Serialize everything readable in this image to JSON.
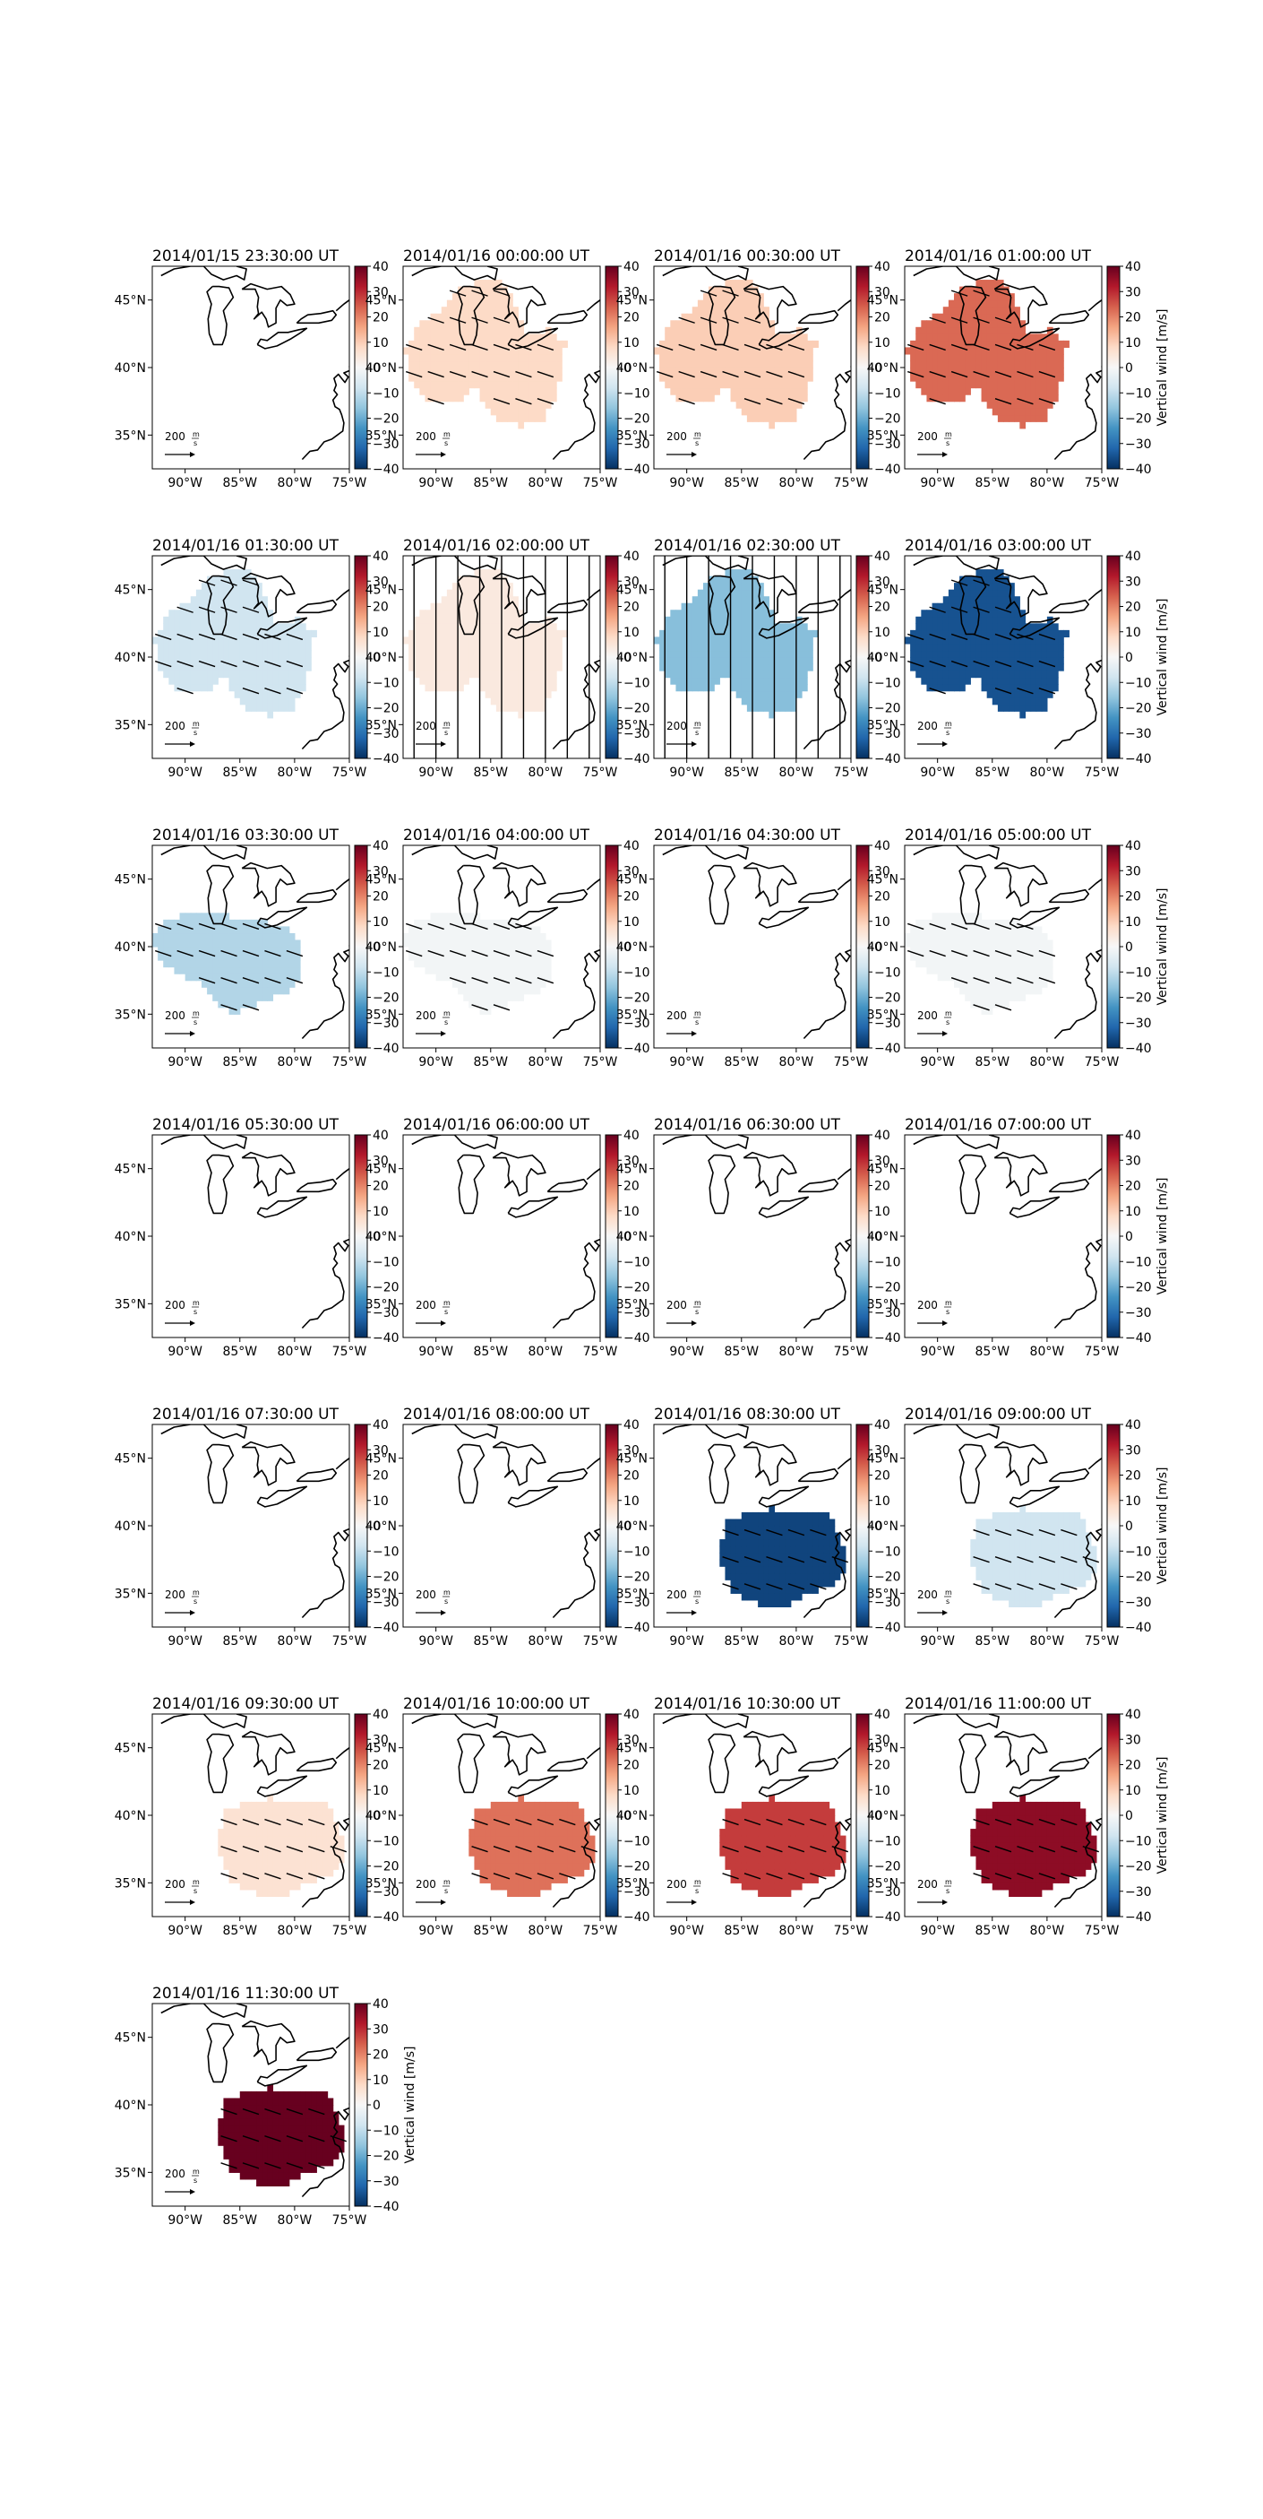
{
  "figure": {
    "colorbar_label": "Vertical wind [m/s]",
    "colorbar_ticks": [
      "40",
      "30",
      "20",
      "10",
      "0",
      "−10",
      "−20",
      "−30",
      "−40"
    ],
    "colormap": "RdBu_r",
    "colormap_stops": [
      "#053061",
      "#2166ac",
      "#4393c3",
      "#92c5de",
      "#d1e5f0",
      "#f7f7f7",
      "#fddbc7",
      "#f4a582",
      "#d6604d",
      "#b2182b",
      "#67001f"
    ],
    "x_ticks": [
      "90°W",
      "85°W",
      "80°W",
      "75°W"
    ],
    "y_ticks": [
      "45°N",
      "40°N",
      "35°N"
    ],
    "vector_key_label": "200",
    "vector_key_unit_top": "m",
    "vector_key_unit_bottom": "s",
    "coastline_color": "#000000"
  },
  "chart_data": [
    {
      "type": "heatmap",
      "title": "2014/01/15 23:30:00 UT",
      "value": null,
      "region": "none",
      "vectors": "none",
      "clim": [
        -40,
        40
      ]
    },
    {
      "type": "heatmap",
      "title": "2014/01/16 00:00:00 UT",
      "value": 8,
      "region": "east",
      "vectors": "wind",
      "clim": [
        -40,
        40
      ]
    },
    {
      "type": "heatmap",
      "title": "2014/01/16 00:30:00 UT",
      "value": 10,
      "region": "east",
      "vectors": "wind",
      "clim": [
        -40,
        40
      ]
    },
    {
      "type": "heatmap",
      "title": "2014/01/16 01:00:00 UT",
      "value": 23,
      "region": "east",
      "vectors": "wind",
      "clim": [
        -40,
        40
      ]
    },
    {
      "type": "heatmap",
      "title": "2014/01/16 01:30:00 UT",
      "value": -8,
      "region": "east",
      "vectors": "wind",
      "clim": [
        -40,
        40
      ]
    },
    {
      "type": "heatmap",
      "title": "2014/01/16 02:00:00 UT",
      "value": 4,
      "region": "east",
      "vectors": "vertical",
      "clim": [
        -40,
        40
      ]
    },
    {
      "type": "heatmap",
      "title": "2014/01/16 02:30:00 UT",
      "value": -17,
      "region": "east",
      "vectors": "vertical",
      "clim": [
        -40,
        40
      ]
    },
    {
      "type": "heatmap",
      "title": "2014/01/16 03:00:00 UT",
      "value": -35,
      "region": "east",
      "vectors": "wind",
      "clim": [
        -40,
        40
      ]
    },
    {
      "type": "heatmap",
      "title": "2014/01/16 03:30:00 UT",
      "value": -12,
      "region": "west",
      "vectors": "wind",
      "clim": [
        -40,
        40
      ]
    },
    {
      "type": "heatmap",
      "title": "2014/01/16 04:00:00 UT",
      "value": -1,
      "region": "west",
      "vectors": "wind",
      "clim": [
        -40,
        40
      ]
    },
    {
      "type": "heatmap",
      "title": "2014/01/16 04:30:00 UT",
      "value": null,
      "region": "none",
      "vectors": "none",
      "clim": [
        -40,
        40
      ]
    },
    {
      "type": "heatmap",
      "title": "2014/01/16 05:00:00 UT",
      "value": -1,
      "region": "west",
      "vectors": "wind",
      "clim": [
        -40,
        40
      ]
    },
    {
      "type": "heatmap",
      "title": "2014/01/16 05:30:00 UT",
      "value": null,
      "region": "none",
      "vectors": "none",
      "clim": [
        -40,
        40
      ]
    },
    {
      "type": "heatmap",
      "title": "2014/01/16 06:00:00 UT",
      "value": null,
      "region": "none",
      "vectors": "none",
      "clim": [
        -40,
        40
      ]
    },
    {
      "type": "heatmap",
      "title": "2014/01/16 06:30:00 UT",
      "value": null,
      "region": "none",
      "vectors": "none",
      "clim": [
        -40,
        40
      ]
    },
    {
      "type": "heatmap",
      "title": "2014/01/16 07:00:00 UT",
      "value": null,
      "region": "none",
      "vectors": "none",
      "clim": [
        -40,
        40
      ]
    },
    {
      "type": "heatmap",
      "title": "2014/01/16 07:30:00 UT",
      "value": null,
      "region": "none",
      "vectors": "none",
      "clim": [
        -40,
        40
      ]
    },
    {
      "type": "heatmap",
      "title": "2014/01/16 08:00:00 UT",
      "value": null,
      "region": "none",
      "vectors": "none",
      "clim": [
        -40,
        40
      ]
    },
    {
      "type": "heatmap",
      "title": "2014/01/16 08:30:00 UT",
      "value": -37,
      "region": "south",
      "vectors": "wind",
      "clim": [
        -40,
        40
      ]
    },
    {
      "type": "heatmap",
      "title": "2014/01/16 09:00:00 UT",
      "value": -8,
      "region": "south",
      "vectors": "wind",
      "clim": [
        -40,
        40
      ]
    },
    {
      "type": "heatmap",
      "title": "2014/01/16 09:30:00 UT",
      "value": 6,
      "region": "south",
      "vectors": "wind",
      "clim": [
        -40,
        40
      ]
    },
    {
      "type": "heatmap",
      "title": "2014/01/16 10:00:00 UT",
      "value": 22,
      "region": "south",
      "vectors": "wind",
      "clim": [
        -40,
        40
      ]
    },
    {
      "type": "heatmap",
      "title": "2014/01/16 10:30:00 UT",
      "value": 28,
      "region": "south",
      "vectors": "wind",
      "clim": [
        -40,
        40
      ]
    },
    {
      "type": "heatmap",
      "title": "2014/01/16 11:00:00 UT",
      "value": 36,
      "region": "south",
      "vectors": "wind",
      "clim": [
        -40,
        40
      ]
    },
    {
      "type": "heatmap",
      "title": "2014/01/16 11:30:00 UT",
      "value": 40,
      "region": "south",
      "vectors": "wind",
      "clim": [
        -40,
        40
      ]
    }
  ]
}
